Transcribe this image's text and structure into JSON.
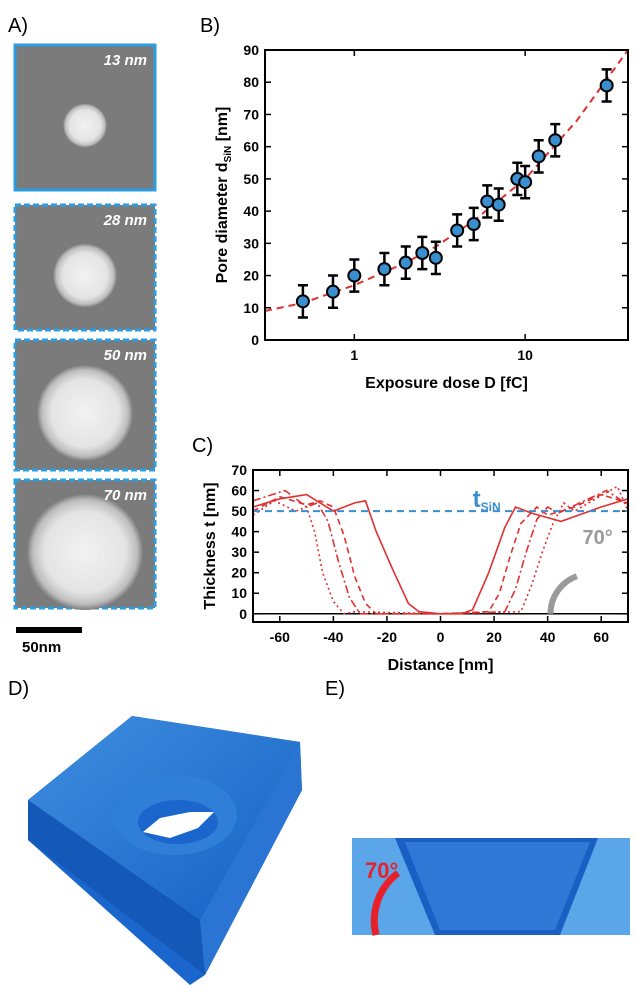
{
  "panel_labels": [
    "A)",
    "B)",
    "C)",
    "D)",
    "E)"
  ],
  "micrographs": {
    "labels": [
      "13 nm",
      "28 nm",
      "50 nm",
      "70 nm"
    ],
    "scale_bar": "50nm"
  },
  "render_e": {
    "angle_label": "70°"
  },
  "chart_data": [
    {
      "type": "scatter",
      "xlabel": "Exposure dose D  [fC]",
      "ylabel": {
        "main": "Pore diameter d",
        "sub": "SiN",
        "unit": "  [nm]"
      },
      "log_x": true,
      "xlim": [
        0.3,
        40
      ],
      "xticks": [
        1,
        10
      ],
      "ylim": [
        0,
        90
      ],
      "yticks": [
        0,
        10,
        20,
        30,
        40,
        50,
        60,
        70,
        80,
        90
      ],
      "color": "#3a8fd0",
      "x": [
        0.5,
        0.75,
        1,
        1.5,
        2,
        2.5,
        3,
        4,
        5,
        6,
        7,
        9,
        10,
        12,
        15,
        30
      ],
      "values": [
        12,
        15,
        20,
        22,
        24,
        27,
        25.5,
        34,
        36,
        43,
        42,
        50,
        49,
        57,
        62,
        79
      ],
      "errors": [
        5,
        5,
        5,
        5,
        5,
        5,
        5,
        5,
        5,
        5,
        5,
        5,
        5,
        5,
        5,
        5
      ],
      "fit": {
        "color": "#e03030",
        "x": [
          0.3,
          0.5,
          1,
          2,
          3,
          5,
          10,
          20,
          40
        ],
        "values": [
          9,
          11.5,
          17,
          24,
          29,
          37,
          50,
          68,
          90
        ]
      }
    },
    {
      "type": "line",
      "xlabel": "Distance   [nm]",
      "ylabel": {
        "main": "Thickness t   [nm]"
      },
      "xlim": [
        -70,
        70
      ],
      "xticks": [
        -60,
        -40,
        -20,
        0,
        20,
        40,
        60
      ],
      "ylim": [
        -4,
        70
      ],
      "yticks": [
        0,
        10,
        20,
        30,
        40,
        50,
        60,
        70
      ],
      "reference": {
        "value": 50,
        "label": "t",
        "sub": "SiN",
        "color": "#3a8fd0"
      },
      "angle_label": "70°",
      "series": [
        {
          "color": "#e03030",
          "dash": "solid",
          "x": [
            -70,
            -60,
            -50,
            -40,
            -32,
            -28,
            -24,
            -18,
            -12,
            -8,
            0,
            8,
            12,
            18,
            24,
            28,
            34,
            45,
            60,
            70
          ],
          "values": [
            52,
            56,
            58,
            50,
            54,
            55,
            40,
            22,
            5,
            1,
            0,
            0,
            2,
            20,
            42,
            52,
            49,
            45,
            52,
            56
          ]
        },
        {
          "color": "#e03030",
          "dash": "dashed",
          "x": [
            -70,
            -60,
            -50,
            -45,
            -40,
            -36,
            -32,
            -28,
            -24,
            0,
            18,
            22,
            26,
            30,
            36,
            40,
            50,
            60,
            70
          ],
          "values": [
            50,
            57,
            53,
            55,
            52,
            38,
            18,
            5,
            0,
            0,
            1,
            10,
            28,
            44,
            52,
            48,
            52,
            58,
            54
          ]
        },
        {
          "color": "#e03030",
          "dash": "dashdot",
          "x": [
            -70,
            -58,
            -50,
            -46,
            -42,
            -38,
            -34,
            -30,
            0,
            24,
            28,
            32,
            36,
            40,
            44,
            52,
            62,
            70
          ],
          "values": [
            55,
            60,
            52,
            54,
            45,
            25,
            8,
            0,
            0,
            1,
            12,
            30,
            46,
            52,
            49,
            54,
            60,
            53
          ]
        },
        {
          "color": "#e03030",
          "dash": "dotted",
          "x": [
            -70,
            -62,
            -54,
            -50,
            -47,
            -44,
            -40,
            -36,
            -32,
            0,
            30,
            34,
            38,
            42,
            46,
            50,
            58,
            66,
            70
          ],
          "values": [
            48,
            55,
            50,
            52,
            40,
            20,
            6,
            0,
            1,
            0,
            1,
            14,
            30,
            44,
            54,
            50,
            56,
            62,
            50
          ]
        }
      ]
    }
  ]
}
